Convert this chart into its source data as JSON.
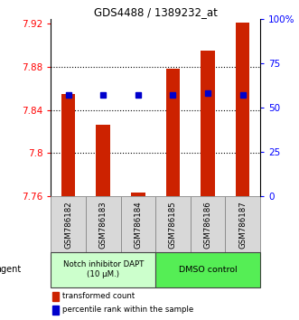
{
  "title": "GDS4488 / 1389232_at",
  "samples": [
    "GSM786182",
    "GSM786183",
    "GSM786184",
    "GSM786185",
    "GSM786186",
    "GSM786187"
  ],
  "red_values": [
    7.855,
    7.826,
    7.763,
    7.878,
    7.895,
    7.921
  ],
  "blue_percentiles": [
    57,
    57,
    57,
    57,
    58,
    57
  ],
  "y_min": 7.76,
  "y_max": 7.924,
  "y_ticks": [
    7.76,
    7.8,
    7.84,
    7.88,
    7.92
  ],
  "y_right_ticks": [
    0,
    25,
    50,
    75,
    100
  ],
  "y_right_labels": [
    "0",
    "25",
    "50",
    "75",
    "100%"
  ],
  "group1_label": "Notch inhibitor DAPT\n(10 μM.)",
  "group2_label": "DMSO control",
  "group1_color": "#ccffcc",
  "group2_color": "#55ee55",
  "bar_color": "#cc2200",
  "dot_color": "#0000cc",
  "legend_bar": "transformed count",
  "legend_dot": "percentile rank within the sample",
  "agent_label": "agent",
  "bar_width": 0.4,
  "bar_base": 7.76
}
